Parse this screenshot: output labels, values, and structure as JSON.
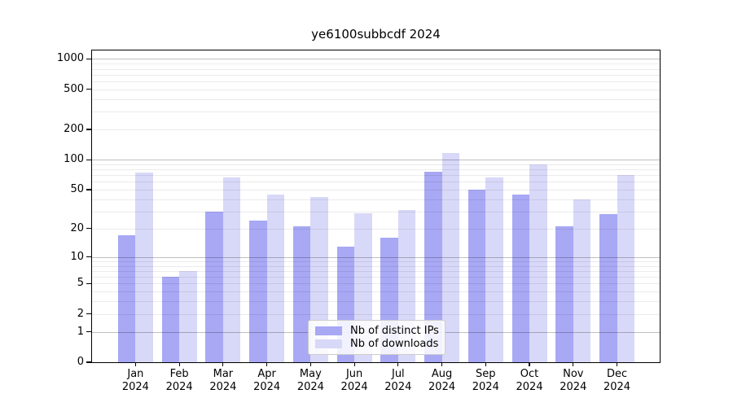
{
  "chart_data": {
    "type": "bar",
    "title": "ye6100subbcdf 2024",
    "categories": [
      "Jan",
      "Feb",
      "Mar",
      "Apr",
      "May",
      "Jun",
      "Jul",
      "Aug",
      "Sep",
      "Oct",
      "Nov",
      "Dec"
    ],
    "category_year": "2024",
    "series": [
      {
        "name": "Nb of distinct IPs",
        "key": "ips",
        "color": "#a8a8f5",
        "values": [
          17,
          6,
          30,
          24,
          21,
          13,
          16,
          76,
          50,
          45,
          21,
          28
        ]
      },
      {
        "name": "Nb of downloads",
        "key": "downloads",
        "color": "#d8d8f8",
        "values": [
          75,
          7,
          66,
          45,
          42,
          29,
          31,
          117,
          66,
          90,
          40,
          70
        ]
      }
    ],
    "yscale": "log1p",
    "ylim": [
      0,
      1215
    ],
    "yticks": [
      0,
      1,
      2,
      5,
      10,
      20,
      50,
      100,
      200,
      500,
      1000
    ],
    "grid": true,
    "legend_position": "lower center"
  },
  "colors": {
    "grid_major": "rgba(0,0,0,0.25)",
    "grid_minor": "rgba(0,0,0,0.08)",
    "spine": "#000000",
    "legend_border": "#cccccc",
    "background": "#ffffff"
  }
}
